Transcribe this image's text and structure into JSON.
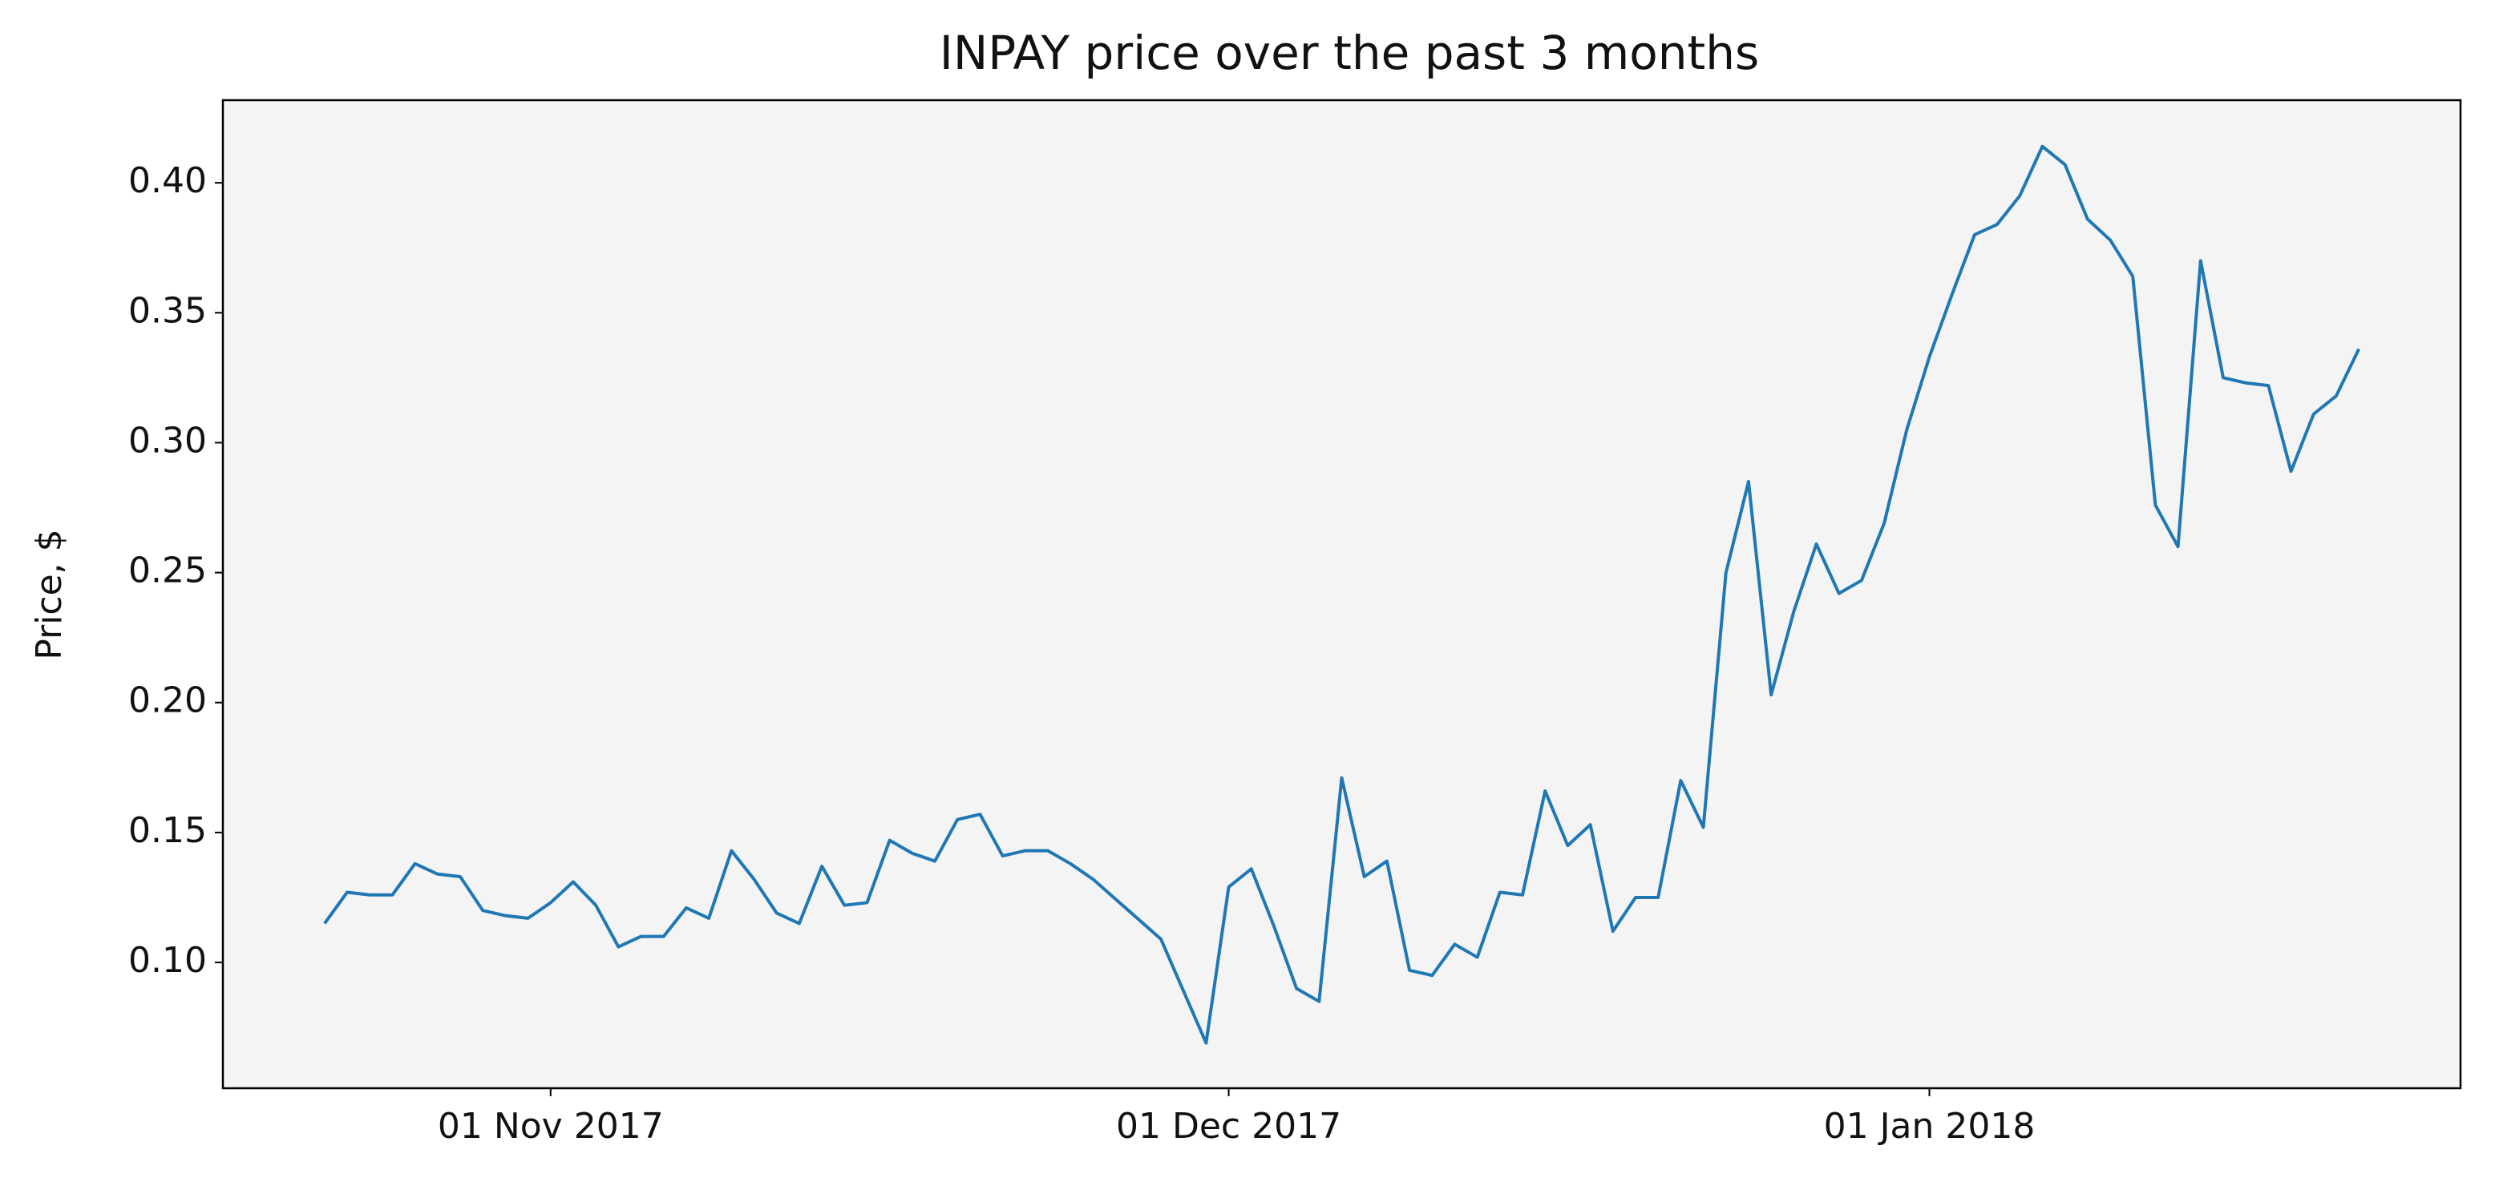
{
  "chart_data": {
    "type": "line",
    "title": "INPAY price over the past 3 months",
    "y_label": "Price, $",
    "x": [
      "2017-10-22",
      "2017-10-23",
      "2017-10-24",
      "2017-10-25",
      "2017-10-26",
      "2017-10-27",
      "2017-10-28",
      "2017-10-29",
      "2017-10-30",
      "2017-10-31",
      "2017-11-01",
      "2017-11-02",
      "2017-11-03",
      "2017-11-04",
      "2017-11-05",
      "2017-11-06",
      "2017-11-07",
      "2017-11-08",
      "2017-11-09",
      "2017-11-10",
      "2017-11-11",
      "2017-11-12",
      "2017-11-13",
      "2017-11-14",
      "2017-11-15",
      "2017-11-16",
      "2017-11-17",
      "2017-11-18",
      "2017-11-19",
      "2017-11-20",
      "2017-11-21",
      "2017-11-22",
      "2017-11-23",
      "2017-11-24",
      "2017-11-25",
      "2017-11-28",
      "2017-11-30",
      "2017-12-01",
      "2017-12-02",
      "2017-12-03",
      "2017-12-04",
      "2017-12-05",
      "2017-12-06",
      "2017-12-07",
      "2017-12-08",
      "2017-12-09",
      "2017-12-10",
      "2017-12-11",
      "2017-12-12",
      "2017-12-13",
      "2017-12-14",
      "2017-12-15",
      "2017-12-16",
      "2017-12-17",
      "2017-12-18",
      "2017-12-19",
      "2017-12-20",
      "2017-12-21",
      "2017-12-22",
      "2017-12-23",
      "2017-12-24",
      "2017-12-25",
      "2017-12-26",
      "2017-12-27",
      "2017-12-28",
      "2017-12-29",
      "2017-12-30",
      "2017-12-31",
      "2018-01-01",
      "2018-01-02",
      "2018-01-03",
      "2018-01-04",
      "2018-01-05",
      "2018-01-06",
      "2018-01-07",
      "2018-01-08",
      "2018-01-09",
      "2018-01-10",
      "2018-01-11",
      "2018-01-12",
      "2018-01-13",
      "2018-01-14",
      "2018-01-15",
      "2018-01-16",
      "2018-01-17",
      "2018-01-18",
      "2018-01-19",
      "2018-01-20"
    ],
    "series": [
      {
        "name": "INPAY",
        "color": "#1f77b4",
        "values": [
          0.115,
          0.127,
          0.126,
          0.126,
          0.138,
          0.134,
          0.133,
          0.12,
          0.118,
          0.117,
          0.123,
          0.131,
          0.122,
          0.106,
          0.11,
          0.11,
          0.121,
          0.117,
          0.143,
          0.132,
          0.119,
          0.115,
          0.137,
          0.122,
          0.123,
          0.147,
          0.142,
          0.139,
          0.155,
          0.157,
          0.141,
          0.143,
          0.143,
          0.138,
          0.132,
          0.109,
          0.069,
          0.129,
          0.136,
          0.114,
          0.09,
          0.085,
          0.171,
          0.133,
          0.139,
          0.097,
          0.095,
          0.107,
          0.102,
          0.127,
          0.126,
          0.166,
          0.145,
          0.153,
          0.112,
          0.125,
          0.125,
          0.17,
          0.152,
          0.25,
          0.285,
          0.203,
          0.235,
          0.261,
          0.242,
          0.247,
          0.269,
          0.305,
          0.333,
          0.357,
          0.38,
          0.384,
          0.395,
          0.414,
          0.407,
          0.386,
          0.378,
          0.364,
          0.276,
          0.26,
          0.37,
          0.325,
          0.323,
          0.322,
          0.289,
          0.311,
          0.318,
          0.336
        ]
      }
    ],
    "xlim": [
      "2017-10-17T12:00:00Z",
      "2018-01-24T12:00:00Z"
    ],
    "xticks": [
      {
        "value": "2017-11-01",
        "label": "01 Nov 2017"
      },
      {
        "value": "2017-12-01",
        "label": "01 Dec 2017"
      },
      {
        "value": "2018-01-01",
        "label": "01 Jan 2018"
      }
    ],
    "ylim": [
      0.0516,
      0.4318
    ],
    "yticks": [
      {
        "value": 0.1,
        "label": "0.10"
      },
      0.15,
      {
        "value": 0.2,
        "label": "0.20"
      },
      0.25,
      {
        "value": 0.3,
        "label": "0.30"
      },
      0.35,
      {
        "value": 0.4,
        "label": "0.40"
      }
    ],
    "background": "#f4f4f4"
  }
}
